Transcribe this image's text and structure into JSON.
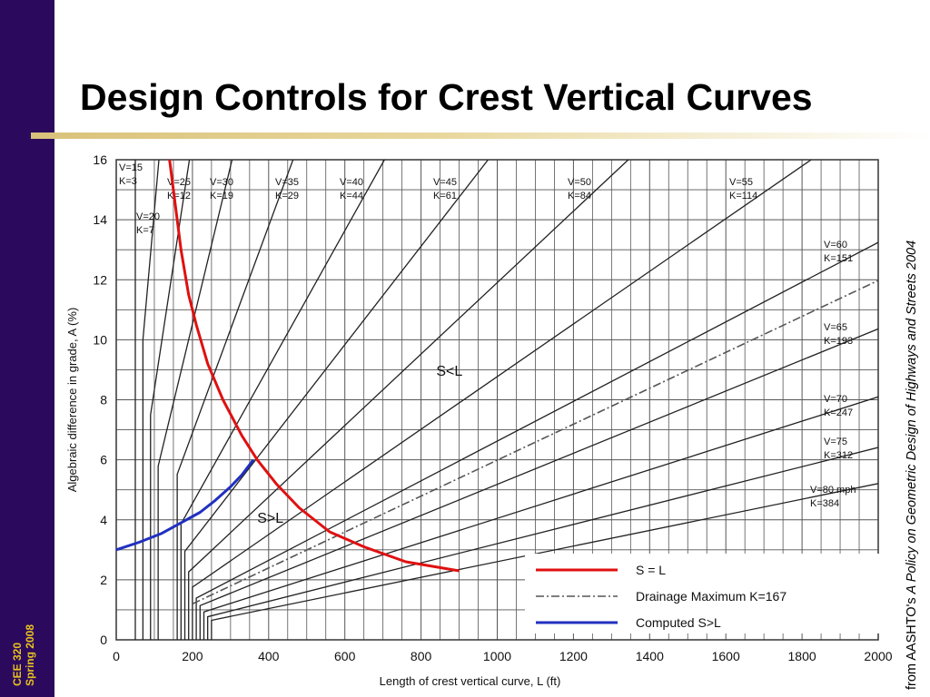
{
  "slide": {
    "title": "Design Controls for Crest Vertical Curves",
    "sidebar_line1": "CEE 320",
    "sidebar_line2": "Spring 2008",
    "credit_prefix": "from AASHTO's ",
    "credit_italic": "A Policy on Geometric Design of Highways and Streets 2004"
  },
  "colors": {
    "sidebar": "#2b0a5e",
    "sidebar_text": "#e8c21e",
    "s_equals_l": "#e01010",
    "computed": "#2030c0",
    "drainage": "#555555",
    "grid": "#555555"
  },
  "chart_data": {
    "type": "line",
    "title": "",
    "xlabel": "Length of crest vertical curve, L (ft)",
    "ylabel": "Algebraic difference in grade, A (%)",
    "xlim": [
      0,
      2000
    ],
    "ylim": [
      0,
      16
    ],
    "x_ticks": [
      0,
      200,
      400,
      600,
      800,
      1000,
      1200,
      1400,
      1600,
      1800,
      2000
    ],
    "y_ticks": [
      0,
      2,
      4,
      6,
      8,
      10,
      12,
      14,
      16
    ],
    "grid": true,
    "k_lines": [
      {
        "speed": "V=15",
        "k": "K=3",
        "K": 3
      },
      {
        "speed": "V=20",
        "k": "K=7",
        "K": 7
      },
      {
        "speed": "V=25",
        "k": "K=12",
        "K": 12
      },
      {
        "speed": "V=30",
        "k": "K=19",
        "K": 19
      },
      {
        "speed": "V=35",
        "k": "K=29",
        "K": 29
      },
      {
        "speed": "V=40",
        "k": "K=44",
        "K": 44
      },
      {
        "speed": "V=45",
        "k": "K=61",
        "K": 61
      },
      {
        "speed": "V=50",
        "k": "K=84",
        "K": 84
      },
      {
        "speed": "V=55",
        "k": "K=114",
        "K": 114
      },
      {
        "speed": "V=60",
        "k": "K=151",
        "K": 151
      },
      {
        "speed": "V=65",
        "k": "K=193",
        "K": 193
      },
      {
        "speed": "V=70",
        "k": "K=247",
        "K": 247
      },
      {
        "speed": "V=75",
        "k": "K=312",
        "K": 312
      },
      {
        "speed": "V=80 mph",
        "k": "K=384",
        "K": 384
      }
    ],
    "drainage_max_K": 167,
    "series": [
      {
        "name": "S = L",
        "x": [
          140,
          155,
          170,
          190,
          210,
          240,
          280,
          330,
          370,
          420,
          480,
          560,
          650,
          760,
          900
        ],
        "y": [
          16,
          14.5,
          13,
          11.5,
          10.5,
          9.2,
          8,
          6.8,
          6,
          5.2,
          4.4,
          3.6,
          3.1,
          2.6,
          2.3
        ]
      },
      {
        "name": "Computed S>L",
        "x": [
          0,
          60,
          120,
          170,
          220,
          260,
          300,
          330,
          360
        ],
        "y": [
          3.0,
          3.25,
          3.55,
          3.9,
          4.25,
          4.65,
          5.1,
          5.5,
          6.0
        ]
      },
      {
        "name": "Drainage Maximum K=167"
      }
    ],
    "region_labels": [
      "S<L",
      "S>L"
    ],
    "legend_position": "bottom-right"
  }
}
